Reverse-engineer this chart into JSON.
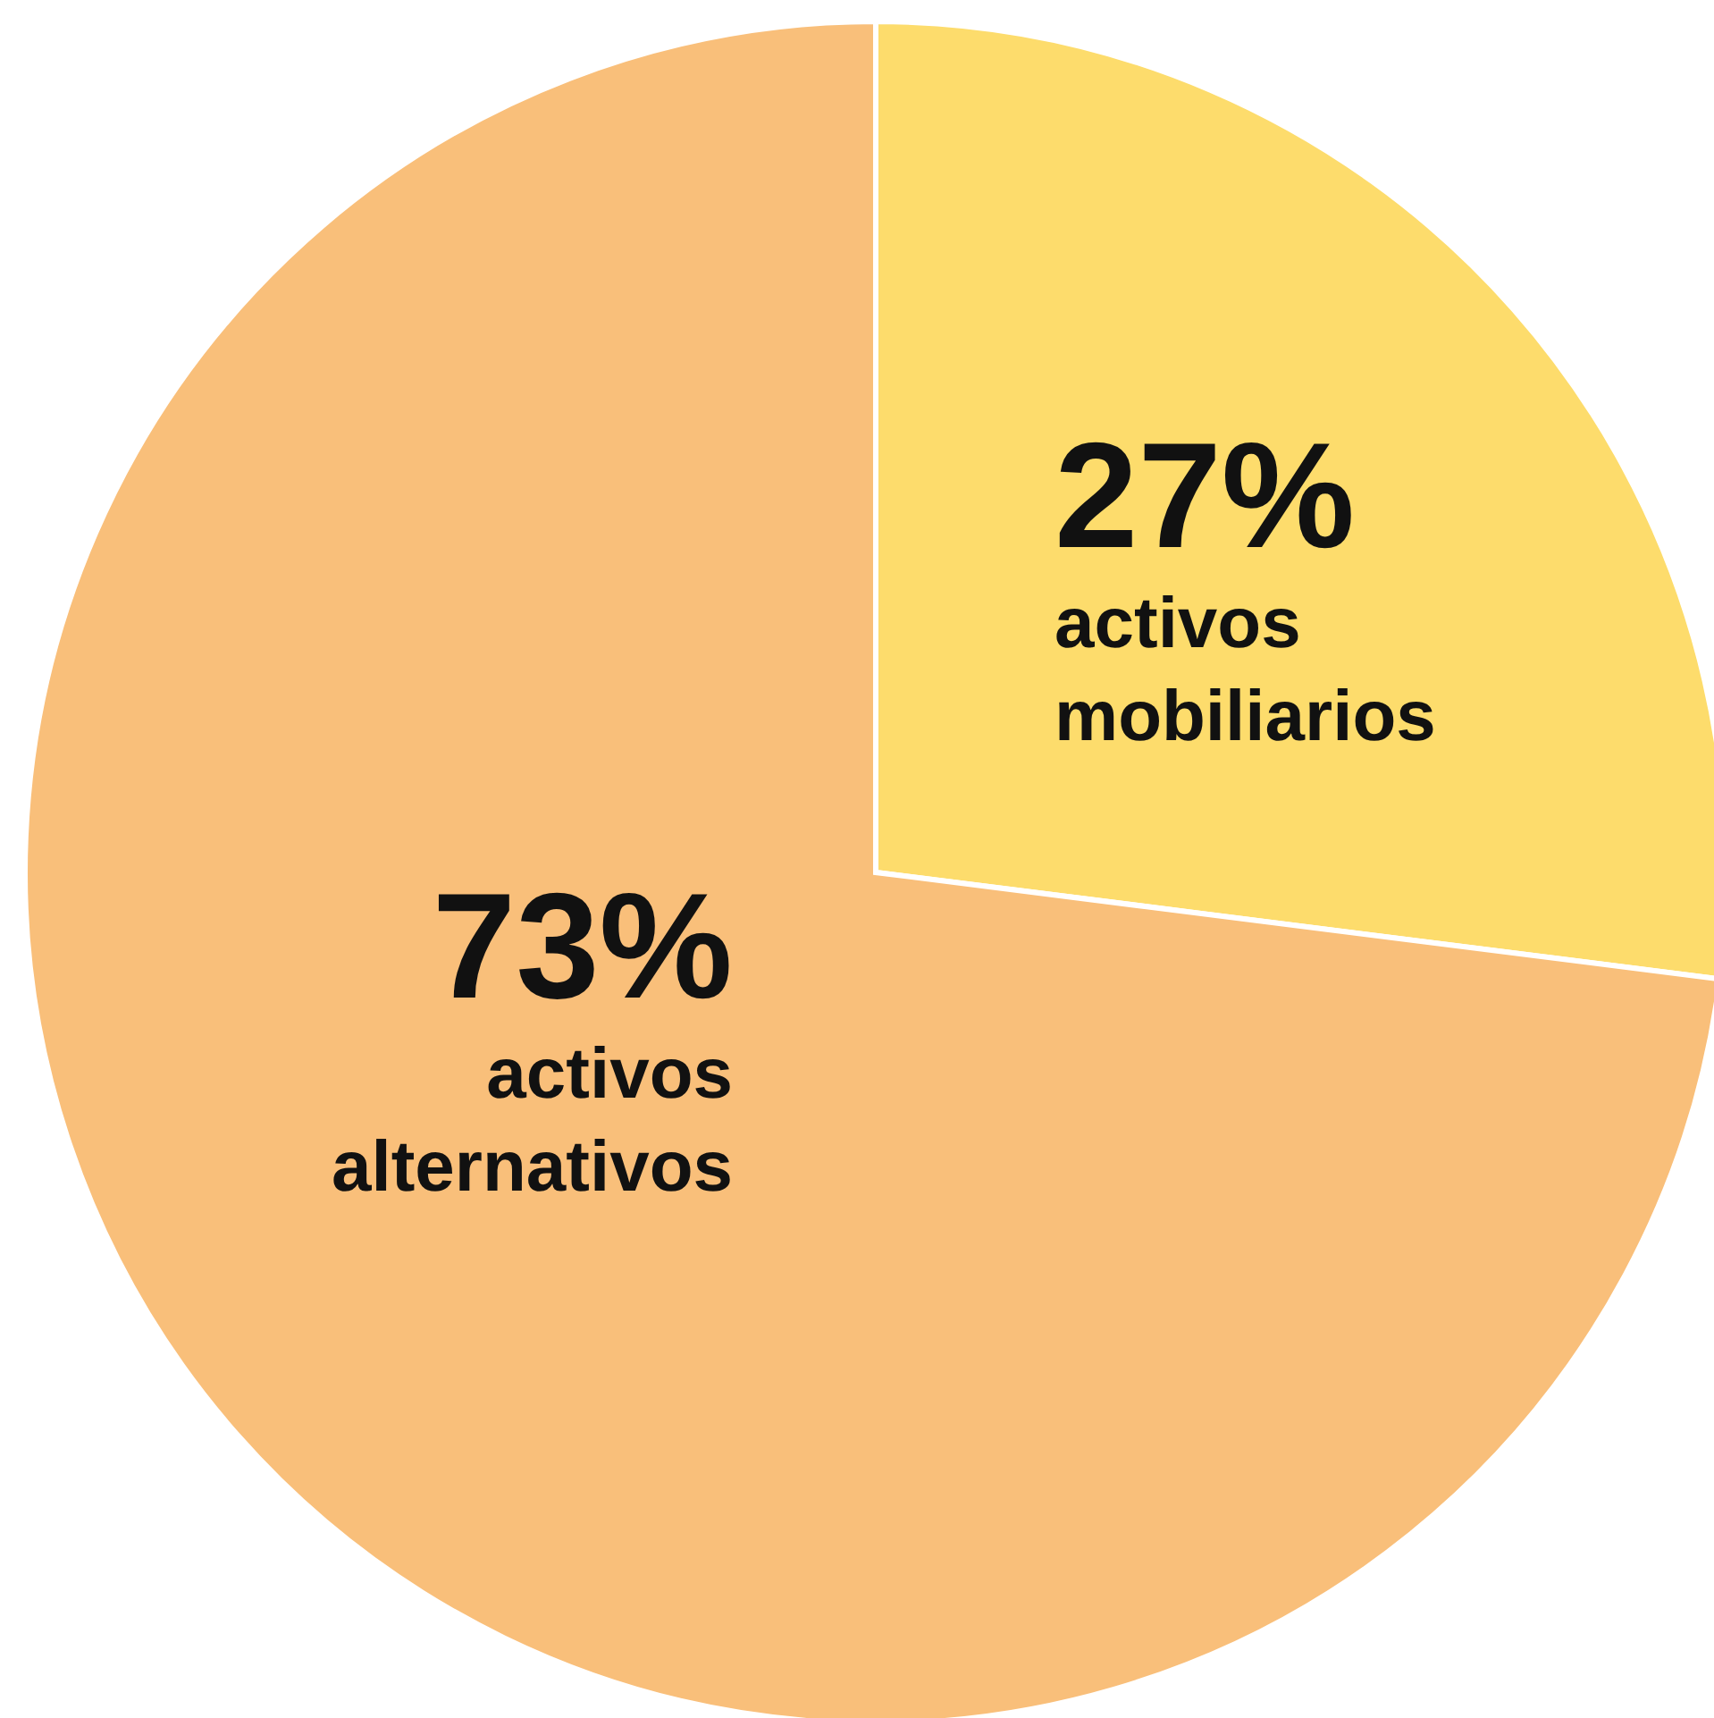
{
  "chart_data": {
    "type": "pie",
    "categories": [
      "activos mobiliarios",
      "activos alternativos"
    ],
    "values": [
      27,
      73
    ],
    "colors": [
      "#fddc6c",
      "#f9bf7a"
    ],
    "value_labels": [
      "27%",
      "73%"
    ]
  }
}
